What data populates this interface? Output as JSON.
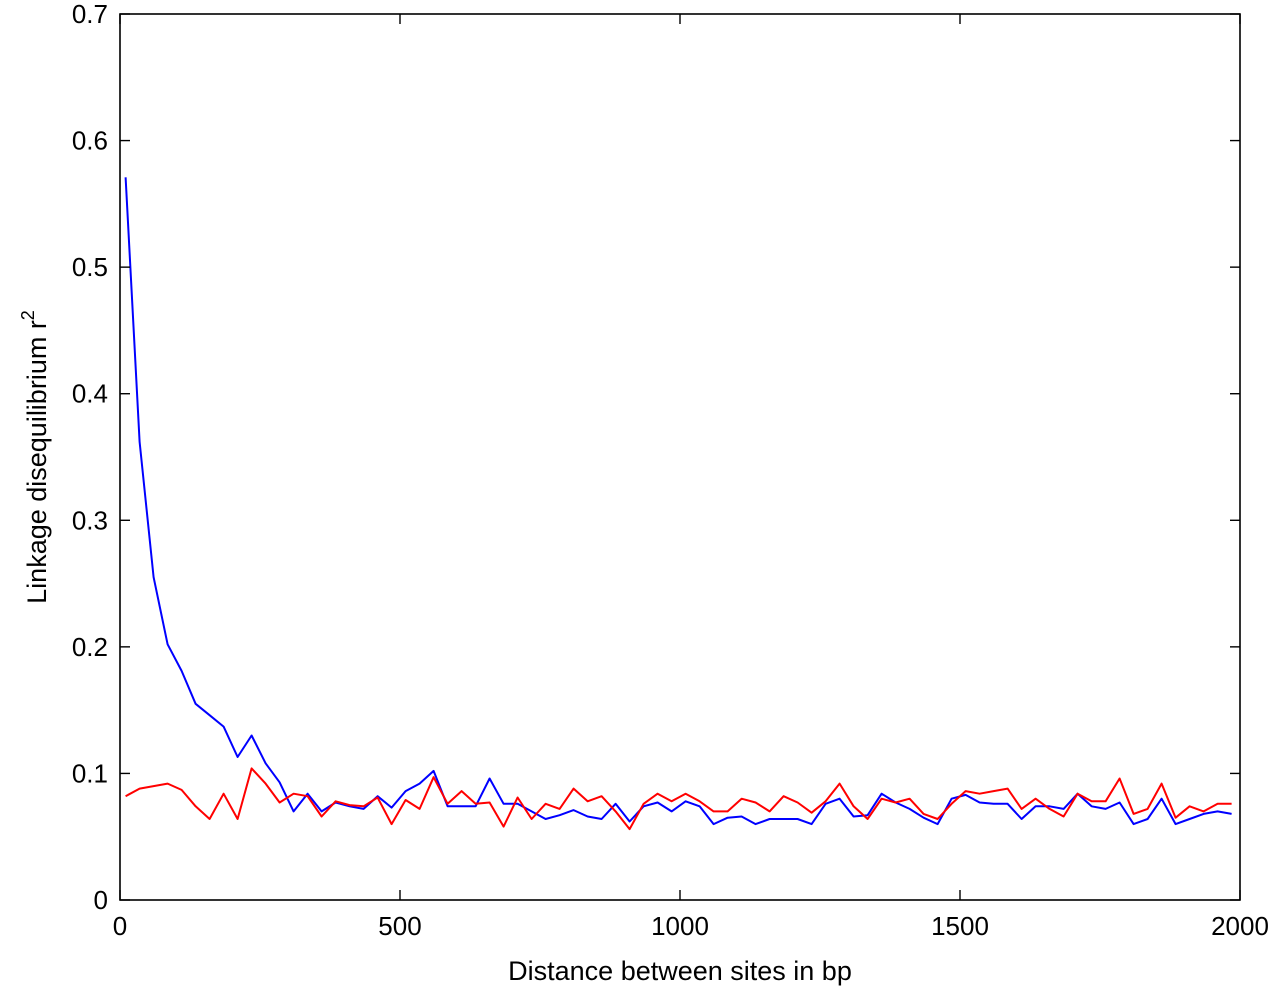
{
  "chart_data": {
    "type": "line",
    "title": "",
    "xlabel": "Distance between sites in bp",
    "ylabel": "Linkage disequilibrium r",
    "ylabel_superscript": "2",
    "xlim": [
      0,
      2000
    ],
    "ylim": [
      0,
      0.7
    ],
    "x_ticks": [
      {
        "value": 0,
        "label": "0"
      },
      {
        "value": 500,
        "label": "500"
      },
      {
        "value": 1000,
        "label": "1000"
      },
      {
        "value": 1500,
        "label": "1500"
      },
      {
        "value": 2000,
        "label": "2000"
      }
    ],
    "y_ticks": [
      {
        "value": 0,
        "label": "0"
      },
      {
        "value": 0.1,
        "label": "0.1"
      },
      {
        "value": 0.2,
        "label": "0.2"
      },
      {
        "value": 0.3,
        "label": "0.3"
      },
      {
        "value": 0.4,
        "label": "0.4"
      },
      {
        "value": 0.5,
        "label": "0.5"
      },
      {
        "value": 0.6,
        "label": "0.6"
      },
      {
        "value": 0.7,
        "label": "0.7"
      }
    ],
    "grid": false,
    "legend": "none",
    "x": [
      10,
      35,
      60,
      85,
      110,
      135,
      160,
      185,
      210,
      235,
      260,
      285,
      310,
      335,
      360,
      385,
      410,
      435,
      460,
      485,
      510,
      535,
      560,
      585,
      610,
      635,
      660,
      685,
      710,
      735,
      760,
      785,
      810,
      835,
      860,
      885,
      910,
      935,
      960,
      985,
      1010,
      1035,
      1060,
      1085,
      1110,
      1135,
      1160,
      1185,
      1210,
      1235,
      1260,
      1285,
      1310,
      1335,
      1360,
      1385,
      1410,
      1435,
      1460,
      1485,
      1510,
      1535,
      1560,
      1585,
      1610,
      1635,
      1660,
      1685,
      1710,
      1735,
      1760,
      1785,
      1810,
      1835,
      1860,
      1885,
      1910,
      1935,
      1960,
      1985
    ],
    "series": [
      {
        "color": "#0000ff",
        "values": [
          0.571,
          0.362,
          0.255,
          0.202,
          0.181,
          0.155,
          0.146,
          0.137,
          0.113,
          0.13,
          0.108,
          0.093,
          0.07,
          0.084,
          0.07,
          0.077,
          0.074,
          0.072,
          0.082,
          0.073,
          0.086,
          0.092,
          0.102,
          0.074,
          0.074,
          0.074,
          0.096,
          0.076,
          0.076,
          0.07,
          0.064,
          0.067,
          0.071,
          0.066,
          0.064,
          0.076,
          0.062,
          0.074,
          0.077,
          0.07,
          0.078,
          0.074,
          0.06,
          0.065,
          0.066,
          0.06,
          0.064,
          0.064,
          0.064,
          0.06,
          0.076,
          0.08,
          0.066,
          0.067,
          0.084,
          0.077,
          0.072,
          0.065,
          0.06,
          0.08,
          0.083,
          0.077,
          0.076,
          0.076,
          0.064,
          0.074,
          0.074,
          0.072,
          0.084,
          0.074,
          0.072,
          0.077,
          0.06,
          0.064,
          0.08,
          0.06,
          0.064,
          0.068,
          0.07,
          0.068
        ]
      },
      {
        "color": "#ff0000",
        "values": [
          0.082,
          0.088,
          0.09,
          0.092,
          0.087,
          0.074,
          0.064,
          0.084,
          0.064,
          0.104,
          0.092,
          0.077,
          0.084,
          0.082,
          0.066,
          0.078,
          0.075,
          0.074,
          0.081,
          0.06,
          0.079,
          0.072,
          0.097,
          0.076,
          0.086,
          0.076,
          0.077,
          0.058,
          0.081,
          0.064,
          0.076,
          0.072,
          0.088,
          0.078,
          0.082,
          0.07,
          0.056,
          0.076,
          0.084,
          0.078,
          0.084,
          0.078,
          0.07,
          0.07,
          0.08,
          0.077,
          0.07,
          0.082,
          0.077,
          0.069,
          0.078,
          0.092,
          0.074,
          0.064,
          0.08,
          0.077,
          0.08,
          0.068,
          0.064,
          0.076,
          0.086,
          0.084,
          0.086,
          0.088,
          0.072,
          0.08,
          0.072,
          0.066,
          0.084,
          0.078,
          0.078,
          0.096,
          0.068,
          0.072,
          0.092,
          0.065,
          0.074,
          0.07,
          0.076,
          0.076
        ]
      }
    ]
  }
}
